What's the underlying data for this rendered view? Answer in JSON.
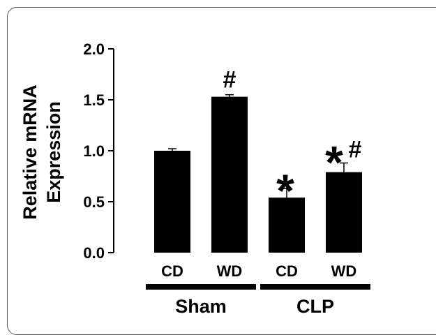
{
  "chart_data": {
    "type": "bar",
    "ylabel": [
      "Relative mRNA",
      "Expression"
    ],
    "ylim": [
      0,
      2.0
    ],
    "yticks": [
      "0.0",
      "0.5",
      "1.0",
      "1.5",
      "2.0"
    ],
    "categories": [
      "CD",
      "WD",
      "CD",
      "WD"
    ],
    "groups": [
      {
        "label": "Sham",
        "span": [
          0,
          1
        ]
      },
      {
        "label": "CLP",
        "span": [
          2,
          3
        ]
      }
    ],
    "values": [
      1.0,
      1.53,
      0.54,
      0.79
    ],
    "errors": [
      0.02,
      0.02,
      0.09,
      0.09
    ],
    "annotations": [
      {
        "index": 1,
        "marks": [
          "#"
        ]
      },
      {
        "index": 2,
        "marks": [
          "*"
        ]
      },
      {
        "index": 3,
        "marks": [
          "*",
          "#"
        ]
      }
    ],
    "colors": {
      "bar": "#000000",
      "frame": "#555555"
    },
    "grid": false,
    "legend": "none"
  }
}
